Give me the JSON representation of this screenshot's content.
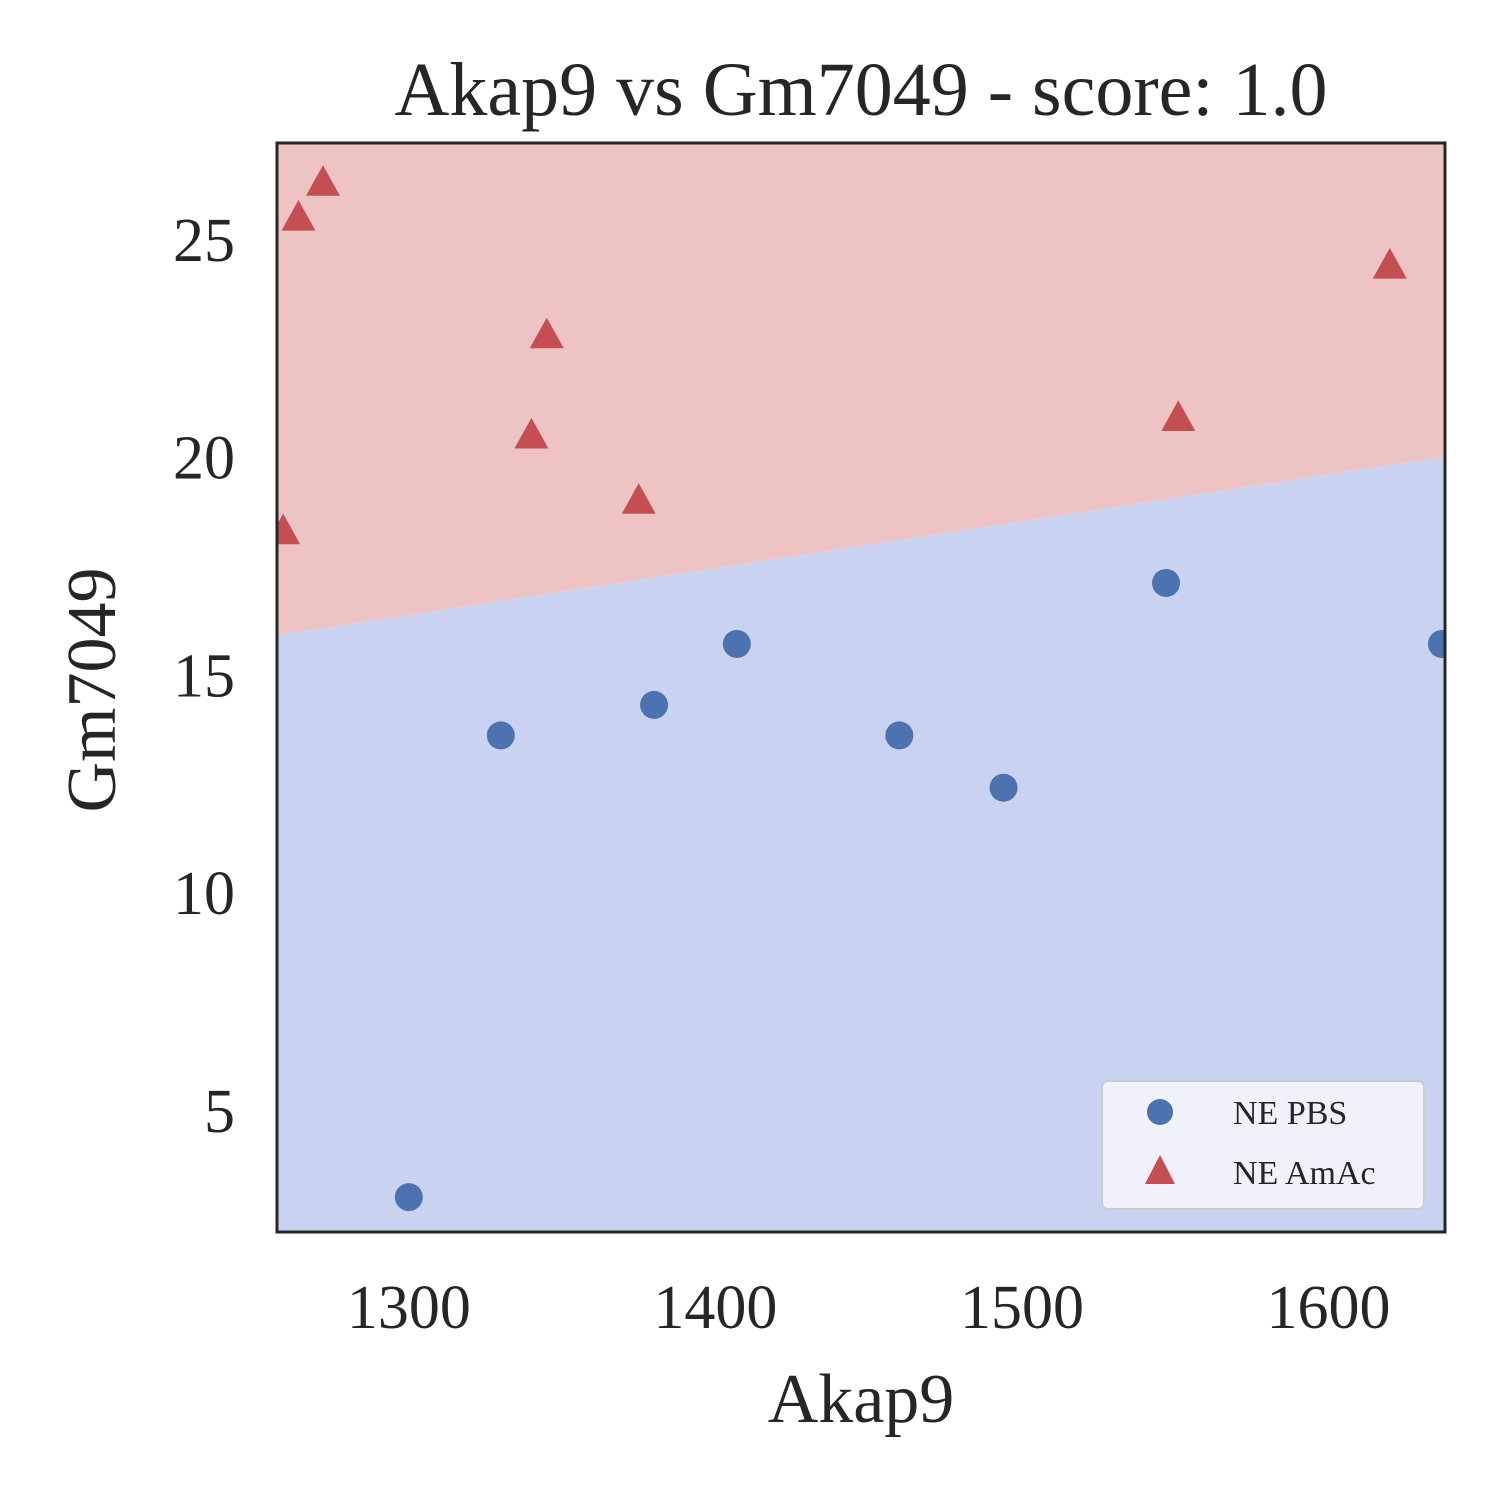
{
  "chart_data": {
    "type": "scatter",
    "title": "Akap9 vs Gm7049 - score: 1.0",
    "xlabel": "Akap9",
    "ylabel": "Gm7049",
    "xlim": [
      1257,
      1638
    ],
    "ylim": [
      2.2,
      27.2
    ],
    "xticks": [
      1300,
      1400,
      1500,
      1600
    ],
    "yticks": [
      5,
      10,
      15,
      20,
      25
    ],
    "grid": false,
    "legend_position": "bottom-right",
    "decision_boundary": {
      "x": [
        1257,
        1638
      ],
      "y": [
        15.9,
        20.0
      ],
      "above_region_color": "#edc4c3",
      "below_region_color": "#cad2f1"
    },
    "series": [
      {
        "name": "NE PBS",
        "marker": "circle",
        "color": "#4c72b0",
        "points": [
          [
            1300,
            3.0
          ],
          [
            1330,
            13.6
          ],
          [
            1380,
            14.3
          ],
          [
            1407,
            15.7
          ],
          [
            1460,
            13.6
          ],
          [
            1494,
            12.4
          ],
          [
            1547,
            17.1
          ],
          [
            1637,
            15.7
          ]
        ]
      },
      {
        "name": "NE AmAc",
        "marker": "triangle",
        "color": "#c44e52",
        "points": [
          [
            1259,
            18.3
          ],
          [
            1264,
            25.5
          ],
          [
            1272,
            26.3
          ],
          [
            1340,
            20.5
          ],
          [
            1345,
            22.8
          ],
          [
            1375,
            19.0
          ],
          [
            1551,
            20.9
          ],
          [
            1620,
            24.4
          ]
        ]
      }
    ]
  }
}
